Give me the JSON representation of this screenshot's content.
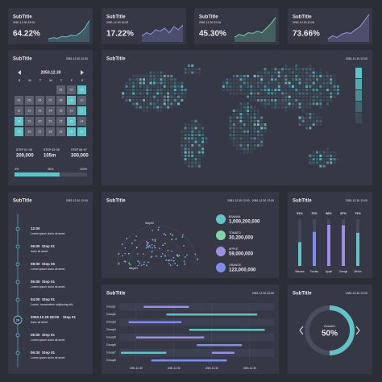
{
  "kpis": [
    {
      "title": "SubTitle",
      "date": "2081.12.30 12:00",
      "value": "64.22%",
      "color": "#5ec4c7",
      "trend": [
        10,
        14,
        12,
        18,
        16,
        22,
        20,
        30,
        45,
        70
      ]
    },
    {
      "title": "SubTitle",
      "date": "2081.12.30 12:00",
      "value": "17.22%",
      "color": "#8b93e8",
      "trend": [
        20,
        30,
        25,
        40,
        35,
        45,
        30,
        50,
        40,
        55
      ]
    },
    {
      "title": "SubTitle",
      "date": "2081.12.30 12:00",
      "value": "45.30%",
      "color": "#6fd3b0",
      "trend": [
        15,
        25,
        20,
        30,
        28,
        35,
        30,
        45,
        60,
        80
      ]
    },
    {
      "title": "SubTitle",
      "date": "2081.12.30 12:00",
      "value": "73.66%",
      "color": "#9b8ee6",
      "trend": [
        10,
        20,
        15,
        25,
        30,
        28,
        40,
        50,
        70,
        90
      ]
    }
  ],
  "calendar": {
    "title": "SubTitle",
    "date": "2081.12.30 12:00",
    "month": "2050.12.30",
    "weekdays": [
      "S",
      "M",
      "T",
      "W",
      "T",
      "F",
      "S"
    ],
    "offset": 4,
    "days": [
      "01",
      "02",
      "03",
      "04",
      "05",
      "06",
      "07",
      "08",
      "09",
      "10",
      "11",
      "12",
      "13",
      "14",
      "15",
      "16",
      "17",
      "18",
      "19",
      "20",
      "21",
      "22",
      "23",
      "24",
      "25",
      "26",
      "27",
      "28",
      "29",
      "30",
      "31"
    ],
    "highlight": [
      2,
      8,
      16,
      17,
      22,
      24,
      29,
      30
    ],
    "stats": [
      {
        "label": "STEP 01~05",
        "value": "200,000"
      },
      {
        "label": "STEP 03~05",
        "value": "105m"
      },
      {
        "label": "STEP 06~07",
        "value": "300,000"
      }
    ],
    "progress_labels": [
      "0%",
      "50%",
      "100%"
    ],
    "progress": 62
  },
  "map": {
    "title": "SubTitle",
    "date": "2081.12.30 12:00",
    "scale_colors": [
      "#3f4a57",
      "#3f6670",
      "#4a8c92",
      "#55aab0",
      "#5ec4c7"
    ]
  },
  "timeline": {
    "title": "SubTitle",
    "date": "2081.12.30 12:00",
    "items": [
      {
        "time": "12:00",
        "text": "Lorem ipsum dolor sit amet."
      },
      {
        "time": "06:00",
        "step": "Step 01",
        "text": "dolor sit amet."
      },
      {
        "time": "08:00",
        "step": "Step 05",
        "text": "Lorem ipsum dolor sit amet."
      },
      {
        "time": "06:00",
        "step": "Step 01",
        "text": "Lorem ipsum dolor sit amet."
      },
      {
        "time": "04:00",
        "step": "Step 01",
        "text": "Lorem, consectetur adipiscing elit."
      },
      {
        "marker": "28",
        "time": "2050.12.29 08:00",
        "step": "Step 01",
        "text": "dolor sit amet."
      },
      {
        "time": "06:00",
        "step": "Step 01",
        "text": "Lorem ipsum dolor sit amet."
      },
      {
        "time": "06:00",
        "step": "Step 01",
        "text": "Lorem ipsum dolor sit amet."
      }
    ]
  },
  "radial": {
    "title": "SubTitle",
    "date": "2081.12.30 12:00 - 2081.12.30 12:00",
    "labels": [
      "Step02",
      "Step01"
    ],
    "legend": [
      {
        "name": "BANANA",
        "value": "1,000,200,000",
        "color": "#5ec4c7"
      },
      {
        "name": "TOMATO",
        "value": "30,200,000",
        "color": "#7ed7a6"
      },
      {
        "name": "APPLE",
        "value": "59,000,000",
        "color": "#9b8ee6"
      },
      {
        "name": "ORANGE",
        "value": "123,000,000",
        "color": "#7d8cf0"
      }
    ]
  },
  "bars": {
    "title": "SubTitle",
    "date": "2081.12.30 12:00",
    "categories": [
      "Banana",
      "Tomato",
      "Apple",
      "Orange",
      "Melon"
    ],
    "values": [
      51,
      73,
      88,
      87,
      71
    ],
    "value_labels": [
      "51%",
      "73%",
      "88%",
      "87%",
      "71%"
    ],
    "colors": [
      "#5ec4c7",
      "#7d8cf0",
      "#9b8ee6",
      "#9b8ee6",
      "#5ec4c7"
    ],
    "ylim": [
      0,
      100
    ]
  },
  "gantt": {
    "title": "SubTitle",
    "date": "2081.12.30 12:00",
    "groups": [
      "Group1",
      "Group2",
      "Group3",
      "Group4",
      "Group5",
      "Group6",
      "Group7",
      "Group8"
    ],
    "xlim": [
      0,
      100
    ],
    "xticks": [
      {
        "value": 10,
        "label": "2081.12.30"
      },
      {
        "value": 35,
        "label": "2081.12.30"
      },
      {
        "value": 60,
        "label": "2081.12.30"
      },
      {
        "value": 85,
        "label": "2081.12.30"
      }
    ],
    "tasks": [
      {
        "group": 0,
        "start": 15,
        "end": 45,
        "color": "#9b8ee6"
      },
      {
        "group": 1,
        "start": 30,
        "end": 90,
        "color": "#5ec4c7"
      },
      {
        "group": 2,
        "start": 5,
        "end": 40,
        "color": "#7d8cf0"
      },
      {
        "group": 3,
        "start": 45,
        "end": 95,
        "color": "#5ec4c7"
      },
      {
        "group": 4,
        "start": 10,
        "end": 55,
        "color": "#9b8ee6"
      },
      {
        "group": 5,
        "start": 50,
        "end": 80,
        "color": "#7d8cf0"
      },
      {
        "group": 6,
        "start": 0,
        "end": 30,
        "color": "#5ec4c7"
      },
      {
        "group": 6,
        "start": 60,
        "end": 75,
        "color": "#9b8ee6"
      },
      {
        "group": 7,
        "start": 20,
        "end": 70,
        "color": "#7d8cf0"
      }
    ]
  },
  "donut": {
    "title": "SubTitle",
    "date": "2081.12.30 12:00",
    "label": "Great01",
    "value": 50,
    "value_label": "50%",
    "color": "#5ec4c7"
  }
}
